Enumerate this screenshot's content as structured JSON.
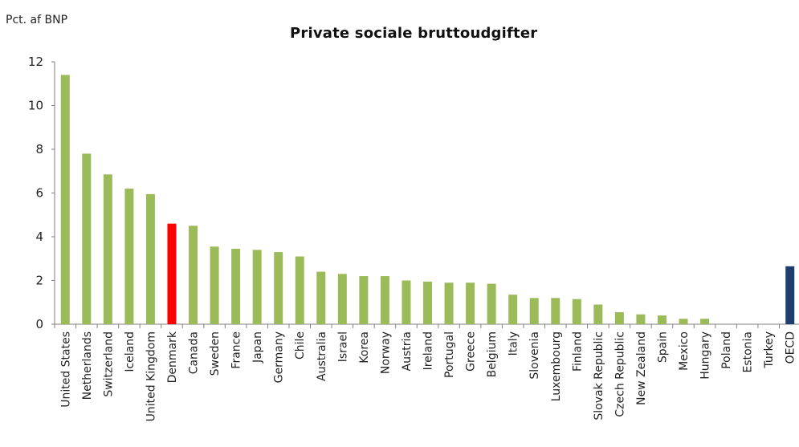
{
  "chart_data": {
    "type": "bar",
    "title": "Private sociale bruttoudgifter",
    "ylabel": "Pct. af BNP",
    "xlabel": "",
    "ylim": [
      0,
      12
    ],
    "yticks": [
      0,
      2,
      4,
      6,
      8,
      10,
      12
    ],
    "grid": false,
    "legend": "none",
    "categories": [
      "United States",
      "Netherlands",
      "Switzerland",
      "Iceland",
      "United Kingdom",
      "Denmark",
      "Canada",
      "Sweden",
      "France",
      "Japan",
      "Germany",
      "Chile",
      "Australia",
      "Israel",
      "Korea",
      "Norway",
      "Austria",
      "Ireland",
      "Portugal",
      "Greece",
      "Belgium",
      "Italy",
      "Slovenia",
      "Luxembourg",
      "Finland",
      "Slovak Republic",
      "Czech Republic",
      "New Zealand",
      "Spain",
      "Mexico",
      "Hungary",
      "Poland",
      "Estonia",
      "Turkey",
      "OECD"
    ],
    "values": [
      11.4,
      7.8,
      6.85,
      6.2,
      5.95,
      4.6,
      4.5,
      3.55,
      3.45,
      3.4,
      3.3,
      3.1,
      2.4,
      2.3,
      2.2,
      2.2,
      2.0,
      1.95,
      1.9,
      1.9,
      1.85,
      1.35,
      1.2,
      1.2,
      1.15,
      0.9,
      0.55,
      0.45,
      0.4,
      0.25,
      0.25,
      0,
      0,
      0,
      2.65
    ],
    "colors": {
      "default": "#9bbb59",
      "highlight": "#ff0000",
      "average": "#1f3d6d",
      "axis": "#7f7f7f"
    },
    "highlight_category": "Denmark",
    "average_category": "OECD"
  }
}
